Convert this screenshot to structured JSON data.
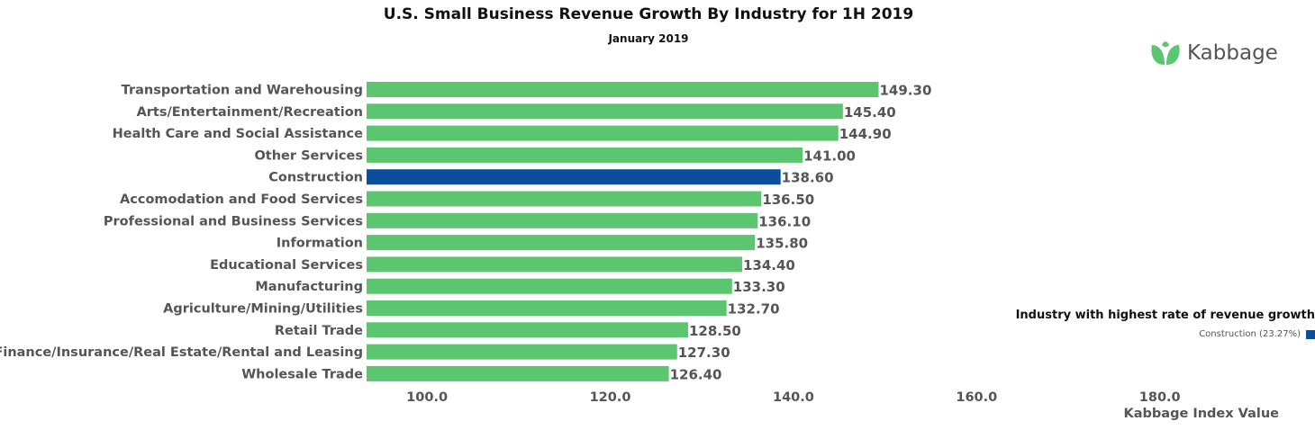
{
  "chart_data": {
    "type": "bar",
    "orientation": "horizontal",
    "title": "U.S. Small Business Revenue Growth By Industry for 1H 2019",
    "subtitle": "January 2019",
    "xlabel": "Kabbage Index Value",
    "xlim": [
      93.4,
      196
    ],
    "xticks": [
      "100.0",
      "120.0",
      "140.0",
      "160.0",
      "180.0"
    ],
    "tick_values": [
      100,
      120,
      140,
      160,
      180
    ],
    "grid": false,
    "categories": [
      "Transportation and Warehousing",
      "Arts/Entertainment/Recreation",
      "Health Care and Social Assistance",
      "Other Services",
      "Construction",
      "Accomodation and Food Services",
      "Professional and Business Services",
      "Information",
      "Educational Services",
      "Manufacturing",
      "Agriculture/Mining/Utilities",
      "Retail Trade",
      "Finance/Insurance/Real Estate/Rental and Leasing",
      "Wholesale Trade"
    ],
    "values": [
      149.3,
      145.4,
      144.9,
      141.0,
      138.6,
      136.5,
      136.1,
      135.8,
      134.4,
      133.3,
      132.7,
      128.5,
      127.3,
      126.4
    ],
    "labels": [
      "149.30",
      "145.40",
      "144.90",
      "141.00",
      "138.60",
      "136.50",
      "136.10",
      "135.80",
      "134.40",
      "133.30",
      "132.70",
      "128.50",
      "127.30",
      "126.40"
    ],
    "highlight": "Construction",
    "colors": {
      "default": "#5cc56f",
      "highlight": "#0b4f9c"
    },
    "legend": {
      "title": "Industry with highest rate of revenue growth",
      "item": "Construction (23.27%)",
      "placement": "right"
    }
  },
  "logo": {
    "text": "Kabbage",
    "color": "#5cc56f",
    "icon": "leaf-icon"
  }
}
